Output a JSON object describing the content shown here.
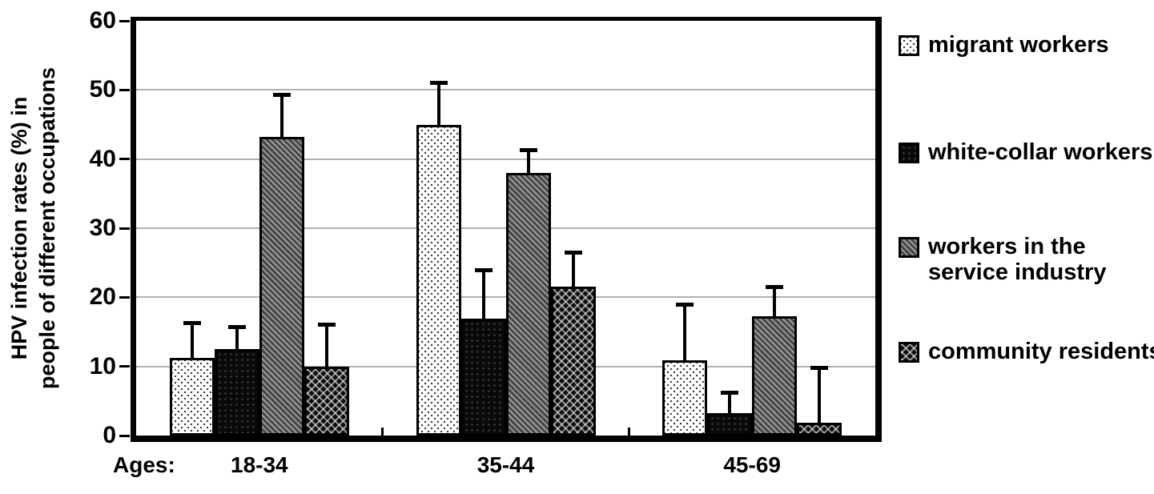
{
  "figure": {
    "x_axis_prefix": "Ages:",
    "background": "#ffffff"
  },
  "colors": {
    "axis": "#000000",
    "gridline": "#b0b0b0",
    "hatch_light": "#9c9c9c",
    "hatch_dark": "#474747",
    "bar_black": "#0a0a0a",
    "bar_white": "#ffffff"
  },
  "chart_data": {
    "type": "bar",
    "title": "",
    "categories": [
      "18-34",
      "35-44",
      "45-69"
    ],
    "x_prefix_label": "Ages:",
    "ylabel_lines": [
      "HPV infection rates (%) in",
      "people of different occupations"
    ],
    "ylabel": "HPV infection rates (%) in people of different occupations",
    "xlabel": "Ages",
    "ylim": [
      0,
      60
    ],
    "yticks": [
      0,
      10,
      20,
      30,
      40,
      50,
      60
    ],
    "grid": "horizontal major gridlines, light gray, behind bars",
    "legend_position": "right",
    "error_bars": "upper only, black stem with cap",
    "series": [
      {
        "name": "migrant workers",
        "pattern": "light-dots",
        "values": [
          11.2,
          44.9,
          10.9
        ],
        "error_upper": [
          5.1,
          6.2,
          8.1
        ]
      },
      {
        "name": "white-collar workers",
        "pattern": "black-dots",
        "values": [
          12.5,
          16.9,
          3.2
        ],
        "error_upper": [
          3.3,
          7.1,
          3.1
        ]
      },
      {
        "name": "workers in the service industry",
        "pattern": "gray-diagonal-hatch",
        "values": [
          43.2,
          38.0,
          17.3
        ],
        "error_upper": [
          6.1,
          3.3,
          4.2
        ]
      },
      {
        "name": "community residents",
        "pattern": "dark-crosshatch",
        "values": [
          10.0,
          21.5,
          1.9
        ],
        "error_upper": [
          6.1,
          5.0,
          8.0
        ]
      }
    ]
  }
}
